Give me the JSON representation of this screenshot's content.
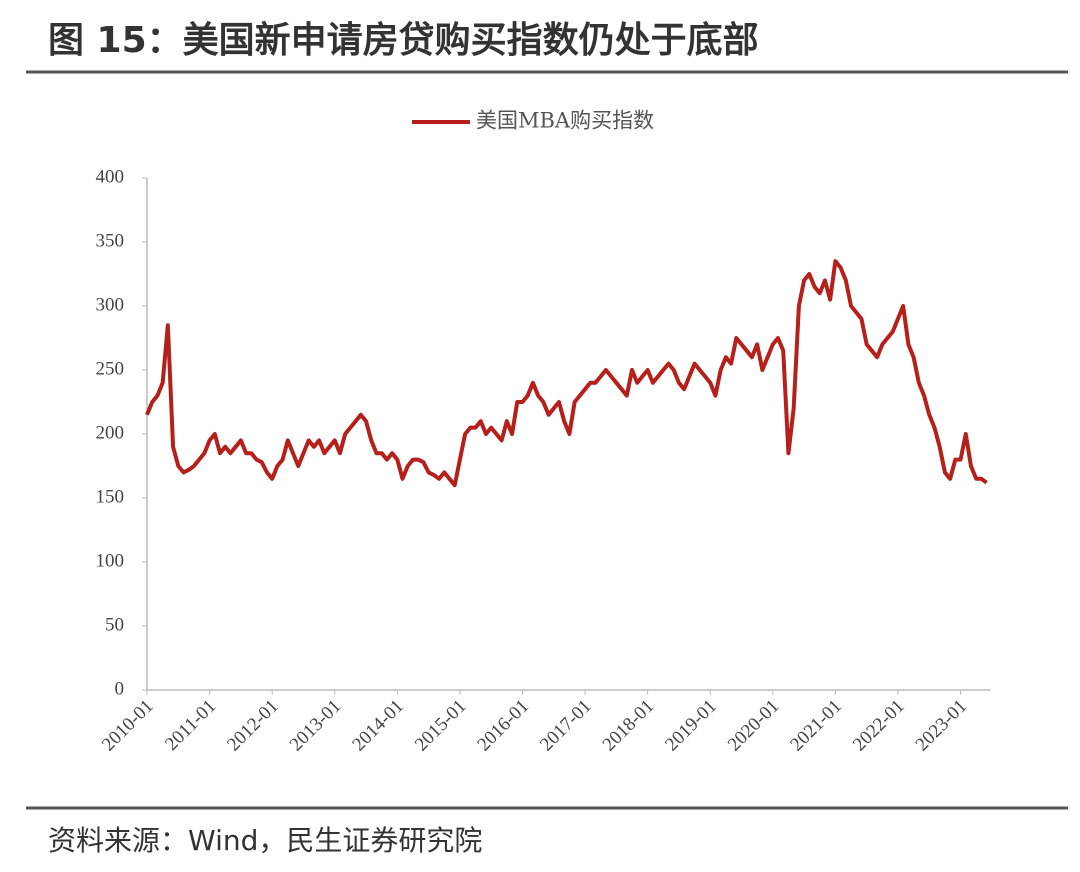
{
  "title": "图 15：美国新申请房贷购买指数仍处于底部",
  "source": "资料来源：Wind，民生证券研究院",
  "chart_data": {
    "type": "line",
    "x": [
      "2010-01",
      null,
      null,
      null,
      null,
      null,
      null,
      null,
      null,
      null,
      null,
      null,
      "2011-01",
      null,
      null,
      null,
      null,
      null,
      null,
      null,
      null,
      null,
      null,
      null,
      "2012-01",
      null,
      null,
      null,
      null,
      null,
      null,
      null,
      null,
      null,
      null,
      null,
      "2013-01",
      null,
      null,
      null,
      null,
      null,
      null,
      null,
      null,
      null,
      null,
      null,
      "2014-01",
      null,
      null,
      null,
      null,
      null,
      null,
      null,
      null,
      null,
      null,
      null,
      "2015-01",
      null,
      null,
      null,
      null,
      null,
      null,
      null,
      null,
      null,
      null,
      null,
      "2016-01",
      null,
      null,
      null,
      null,
      null,
      null,
      null,
      null,
      null,
      null,
      null,
      "2017-01",
      null,
      null,
      null,
      null,
      null,
      null,
      null,
      null,
      null,
      null,
      null,
      "2018-01",
      null,
      null,
      null,
      null,
      null,
      null,
      null,
      null,
      null,
      null,
      null,
      "2019-01",
      null,
      null,
      null,
      null,
      null,
      null,
      null,
      null,
      null,
      null,
      null,
      "2020-01",
      null,
      null,
      null,
      null,
      null,
      null,
      null,
      null,
      null,
      null,
      null,
      "2021-01",
      null,
      null,
      null,
      null,
      null,
      null,
      null,
      null,
      null,
      null,
      null,
      "2022-01",
      null,
      null,
      null,
      null,
      null,
      null,
      null,
      null,
      null,
      null,
      null,
      "2023-01",
      null,
      null,
      null,
      null,
      null
    ],
    "series": [
      {
        "name": "美国MBA购买指数",
        "color": "#b5201b",
        "values": [
          215,
          225,
          230,
          240,
          285,
          190,
          175,
          170,
          172,
          175,
          180,
          185,
          195,
          200,
          185,
          190,
          185,
          190,
          195,
          185,
          185,
          180,
          178,
          170,
          165,
          175,
          180,
          195,
          185,
          175,
          185,
          195,
          190,
          195,
          185,
          190,
          195,
          185,
          200,
          205,
          210,
          215,
          210,
          195,
          185,
          185,
          180,
          185,
          180,
          165,
          175,
          180,
          180,
          178,
          170,
          168,
          165,
          170,
          165,
          160,
          180,
          200,
          205,
          205,
          210,
          200,
          205,
          200,
          195,
          210,
          200,
          225,
          225,
          230,
          240,
          230,
          225,
          215,
          220,
          225,
          210,
          200,
          225,
          230,
          235,
          240,
          240,
          245,
          250,
          245,
          240,
          235,
          230,
          250,
          240,
          245,
          250,
          240,
          245,
          250,
          255,
          250,
          240,
          235,
          245,
          255,
          250,
          245,
          240,
          230,
          250,
          260,
          255,
          275,
          270,
          265,
          260,
          270,
          250,
          260,
          270,
          275,
          265,
          185,
          220,
          300,
          320,
          325,
          315,
          310,
          320,
          305,
          335,
          330,
          320,
          300,
          295,
          290,
          270,
          265,
          260,
          270,
          275,
          280,
          290,
          300,
          270,
          260,
          240,
          230,
          215,
          205,
          190,
          170,
          165,
          180,
          180,
          200,
          175,
          165,
          165,
          162
        ]
      }
    ],
    "ylim": [
      0,
      400
    ],
    "yticks": [
      0,
      50,
      100,
      150,
      200,
      250,
      300,
      350,
      400
    ],
    "legend": "top"
  }
}
